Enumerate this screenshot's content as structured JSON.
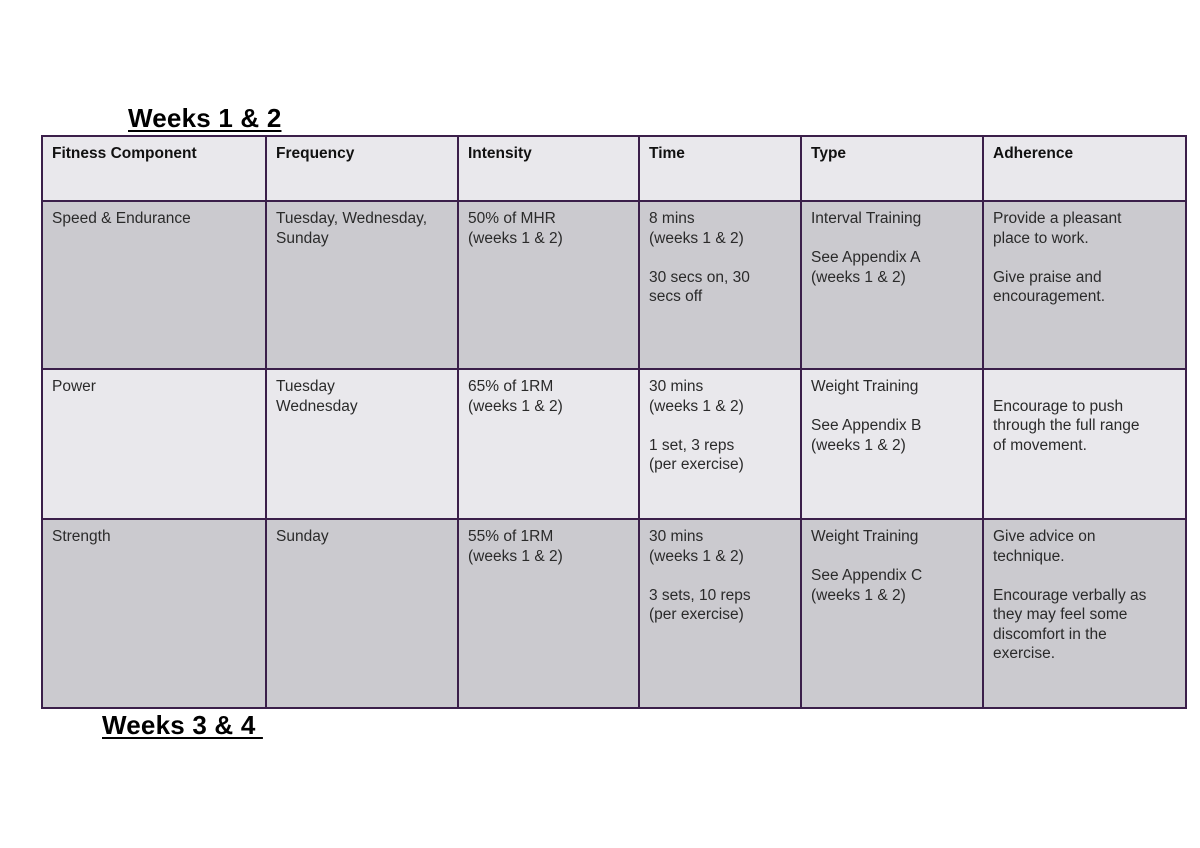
{
  "headings": {
    "first": "Weeks 1 & 2",
    "second": "Weeks 3 & 4 "
  },
  "table": {
    "columns": [
      "Fitness Component",
      "Frequency",
      "Intensity",
      "Time",
      "Type",
      "Adherence"
    ],
    "rows": [
      {
        "component": "Speed & Endurance",
        "frequency": "Tuesday, Wednesday,\nSunday",
        "intensity": "50% of MHR\n(weeks 1 & 2)",
        "time": [
          "8 mins\n(weeks 1 & 2)",
          "30 secs on, 30\nsecs off"
        ],
        "type": [
          "Interval Training",
          "See Appendix A\n(weeks 1 & 2)"
        ],
        "adherence": [
          "Provide a pleasant\nplace to work.",
          "Give praise and\nencouragement."
        ]
      },
      {
        "component": "Power",
        "frequency": "Tuesday\nWednesday",
        "intensity": "65% of 1RM\n(weeks 1 & 2)",
        "time": [
          "30 mins\n(weeks 1 & 2)",
          "1 set, 3 reps\n(per exercise)"
        ],
        "type": [
          "Weight Training",
          "See Appendix B\n(weeks 1 & 2)"
        ],
        "adherence": [
          "Encourage to push\nthrough the full range\nof movement."
        ]
      },
      {
        "component": "Strength",
        "frequency": "Sunday",
        "intensity": "55% of 1RM\n(weeks 1 & 2)",
        "time": [
          "30 mins\n(weeks 1 & 2)",
          "3 sets, 10 reps\n(per exercise)"
        ],
        "type": [
          "Weight Training",
          "See Appendix C\n(weeks 1 & 2)"
        ],
        "adherence": [
          "Give advice on\ntechnique.",
          "Encourage verbally as\nthey may feel some\ndiscomfort in the\nexercise."
        ]
      }
    ]
  },
  "colors": {
    "border": "#3b1f4a",
    "row_light": "#e9e8ec",
    "row_dark": "#cbcacf"
  }
}
